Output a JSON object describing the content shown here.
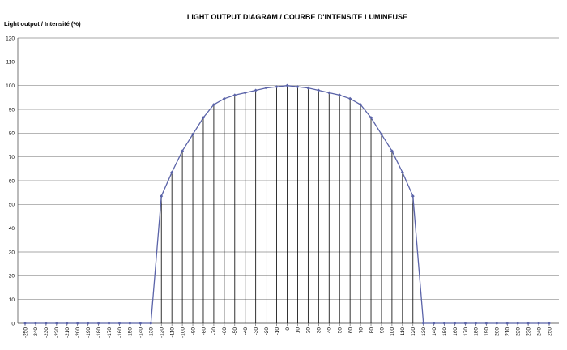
{
  "chart_data": {
    "type": "line",
    "title": "LIGHT OUTPUT DIAGRAM / COURBE D'INTENSITE LUMINEUSE",
    "y_label": "Light output / Intensité (%)",
    "x": [
      -250,
      -240,
      -230,
      -220,
      -210,
      -200,
      -190,
      -180,
      -170,
      -160,
      -150,
      -140,
      -130,
      -120,
      -110,
      -100,
      -90,
      -80,
      -70,
      -60,
      -50,
      -40,
      -30,
      -20,
      -10,
      0,
      10,
      20,
      30,
      40,
      50,
      60,
      70,
      80,
      90,
      100,
      110,
      120,
      130,
      140,
      150,
      160,
      170,
      180,
      190,
      200,
      210,
      220,
      230,
      240,
      250
    ],
    "series": [
      {
        "color": "#5a63a8",
        "values": [
          0,
          0,
          0,
          0,
          0,
          0,
          0,
          0,
          0,
          0,
          0,
          0,
          0,
          53.5,
          63.5,
          72.5,
          79.5,
          86.5,
          92,
          94.5,
          96,
          97,
          98,
          99,
          99.5,
          100,
          99.5,
          99,
          98,
          97,
          96,
          94.5,
          92,
          86.5,
          79.5,
          72.5,
          63.5,
          53.5,
          0,
          0,
          0,
          0,
          0,
          0,
          0,
          0,
          0,
          0,
          0,
          0,
          0
        ]
      }
    ],
    "xlim": [
      -250,
      250
    ],
    "xticks": [
      -250,
      -240,
      -230,
      -220,
      -210,
      -200,
      -190,
      -180,
      -170,
      -160,
      -150,
      -140,
      -130,
      -120,
      -110,
      -100,
      -90,
      -80,
      -70,
      -60,
      -50,
      -40,
      -30,
      -20,
      -10,
      0,
      10,
      20,
      30,
      40,
      50,
      60,
      70,
      80,
      90,
      100,
      110,
      120,
      130,
      140,
      150,
      160,
      170,
      180,
      190,
      200,
      210,
      220,
      230,
      240,
      250
    ],
    "ylim": [
      0,
      120
    ],
    "yticks": [
      0,
      10,
      20,
      30,
      40,
      50,
      60,
      70,
      80,
      90,
      100,
      110,
      120
    ],
    "grid": true,
    "drop_lines": true
  }
}
